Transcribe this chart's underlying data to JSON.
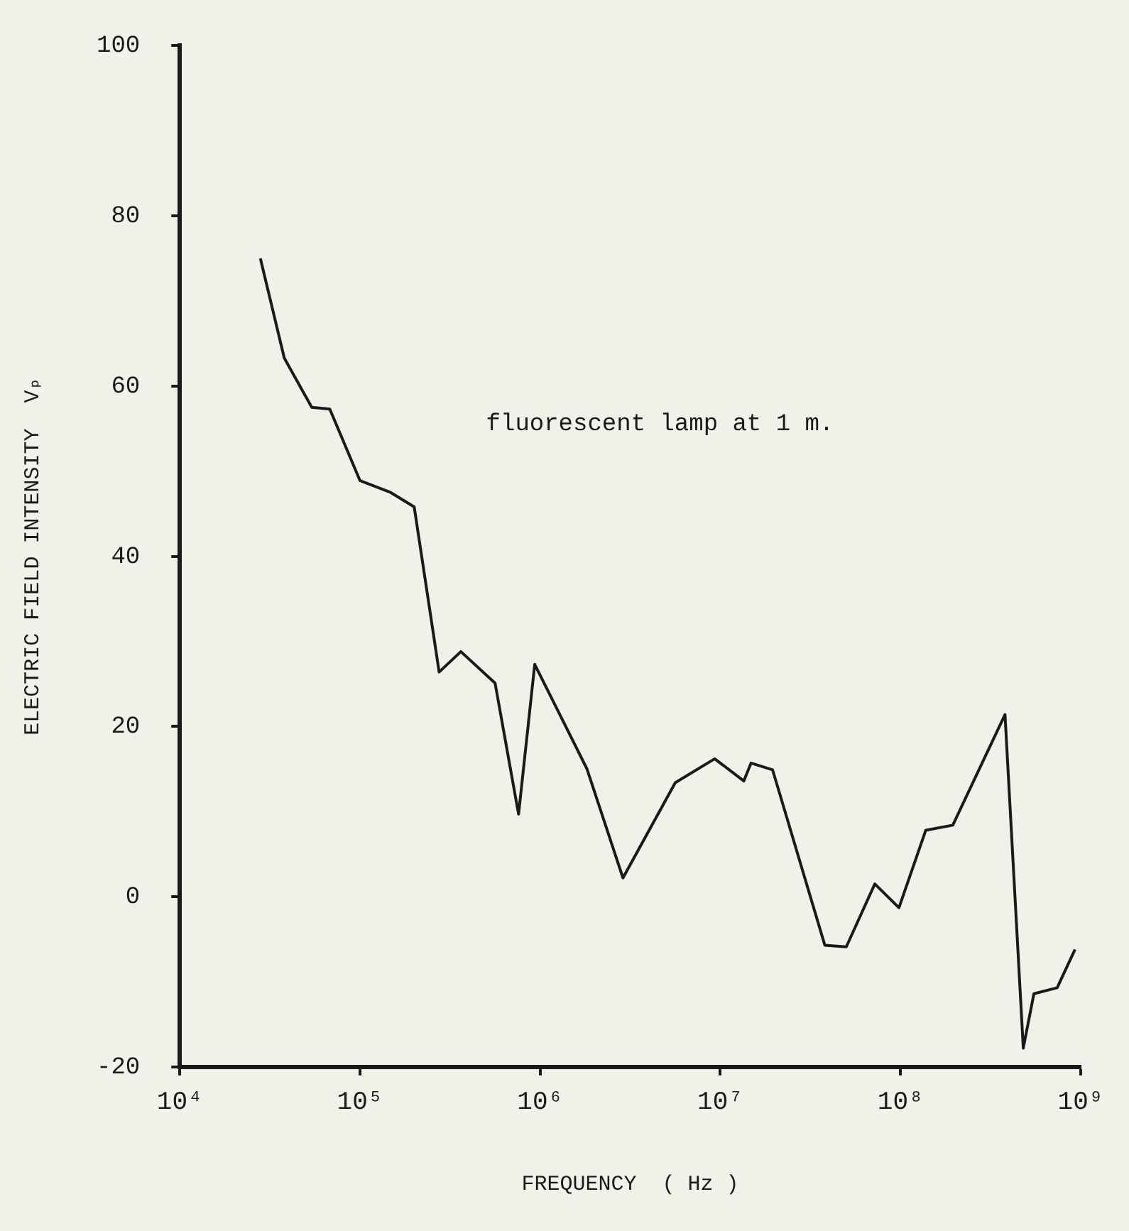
{
  "chart_data": {
    "type": "line",
    "xlabel": "FREQUENCY  ( Hz )",
    "ylabel": "ELECTRIC FIELD INTENSITY  Vₚ",
    "log": "x",
    "x": [
      28000,
      38000,
      54000,
      68000,
      100000,
      148000,
      200000,
      275000,
      363000,
      562000,
      759000,
      933000,
      1820000,
      2880000,
      5620000,
      9300000,
      13500000,
      14800000,
      19500000,
      38000000,
      50000000,
      72000000,
      98000000,
      138000000,
      195000000,
      380000000,
      480000000,
      550000000,
      740000000,
      930000000
    ],
    "series": [
      {
        "color": "#1a1a1a",
        "values": [
          75,
          63.3,
          57.5,
          57.3,
          48.9,
          47.5,
          45.8,
          26.4,
          28.8,
          25.1,
          9.7,
          27.3,
          15,
          2.2,
          13.4,
          16.2,
          13.6,
          15.7,
          14.9,
          -5.7,
          -5.9,
          1.5,
          -1.3,
          7.8,
          8.4,
          21.4,
          -17.8,
          -11.4,
          -10.7,
          -6.2
        ]
      }
    ],
    "xlim": [
      10000,
      1000000000
    ],
    "xticks": [
      {
        "value": 10000,
        "label": "10⁴"
      },
      {
        "value": 100000,
        "label": "10⁵"
      },
      {
        "value": 1000000,
        "label": "10⁶"
      },
      {
        "value": 10000000,
        "label": "10⁷"
      },
      {
        "value": 100000000,
        "label": "10⁸"
      },
      {
        "value": 1000000000,
        "label": "10⁹"
      }
    ],
    "ylim": [
      -20,
      100
    ],
    "yticks": [
      -20,
      0,
      20,
      40,
      60,
      80,
      100
    ],
    "grid": false,
    "legend": false,
    "marker": "none",
    "line_style": "solid",
    "annotations": [
      "fluorescent lamp at 1 m."
    ]
  }
}
